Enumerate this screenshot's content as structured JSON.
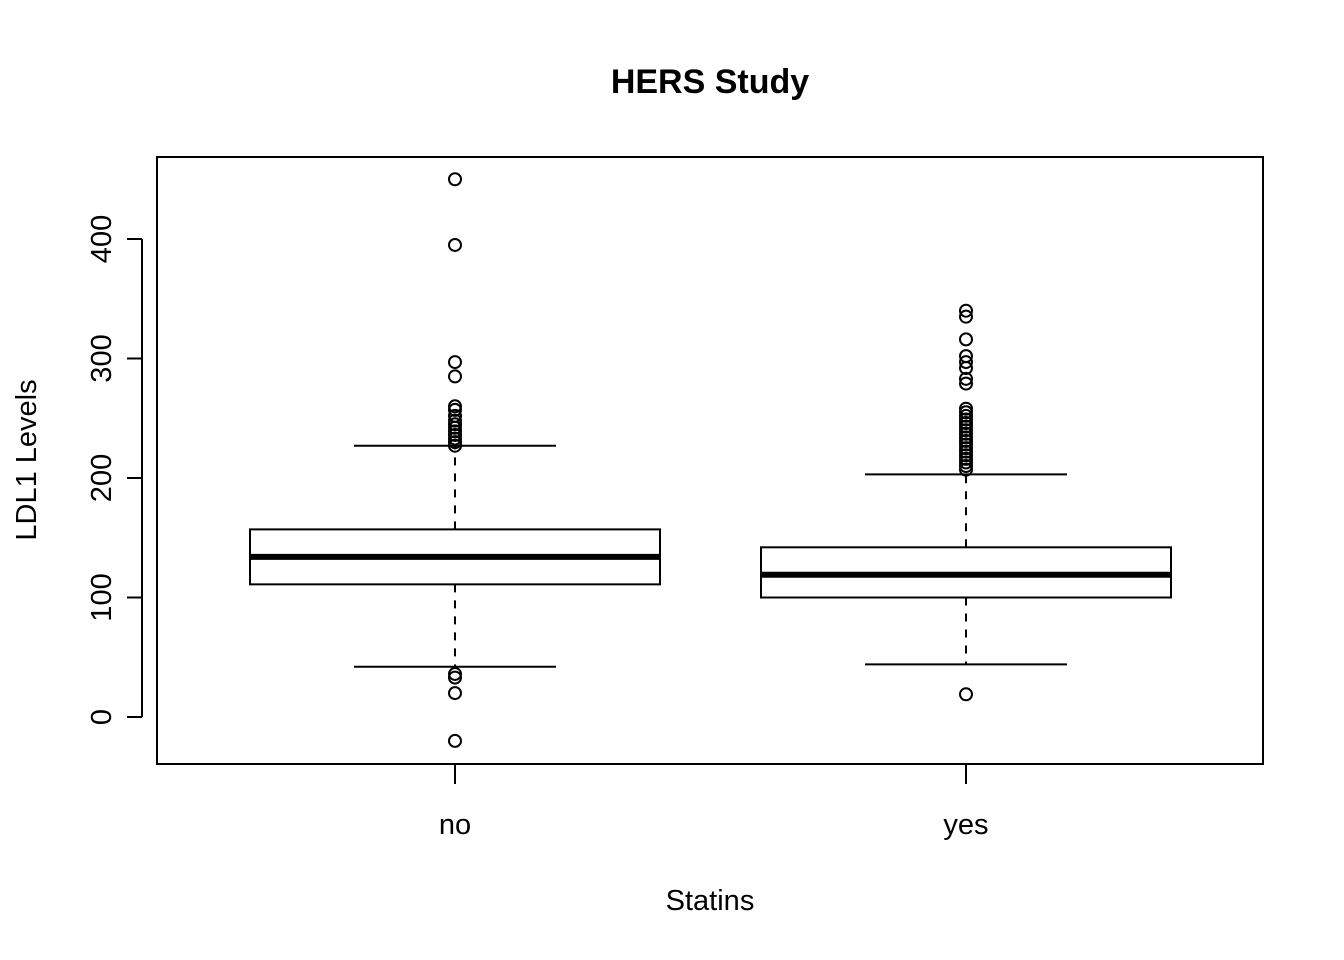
{
  "chart_data": {
    "type": "boxplot",
    "title": "HERS Study",
    "xlabel": "Statins",
    "ylabel": "LDL1 Levels",
    "ylim": [
      -38,
      470
    ],
    "yticks": [
      0,
      100,
      200,
      300,
      400
    ],
    "grid": false,
    "legend": "none",
    "categories": [
      "no",
      "yes"
    ],
    "boxes": [
      {
        "category": "no",
        "whisker_low": 42,
        "q1": 111,
        "median": 134,
        "q3": 157,
        "whisker_high": 227,
        "outliers": [
          450,
          395,
          297,
          285,
          260,
          257,
          252,
          248,
          245,
          242,
          239,
          236,
          233,
          230,
          227,
          36,
          33,
          20,
          -20
        ]
      },
      {
        "category": "yes",
        "whisker_low": 44,
        "q1": 100,
        "median": 119,
        "q3": 142,
        "whisker_high": 203,
        "outliers": [
          340,
          335,
          316,
          302,
          297,
          292,
          283,
          279,
          258,
          255,
          252,
          249,
          246,
          243,
          240,
          237,
          234,
          231,
          228,
          225,
          222,
          219,
          216,
          213,
          210,
          207,
          19
        ]
      }
    ]
  }
}
